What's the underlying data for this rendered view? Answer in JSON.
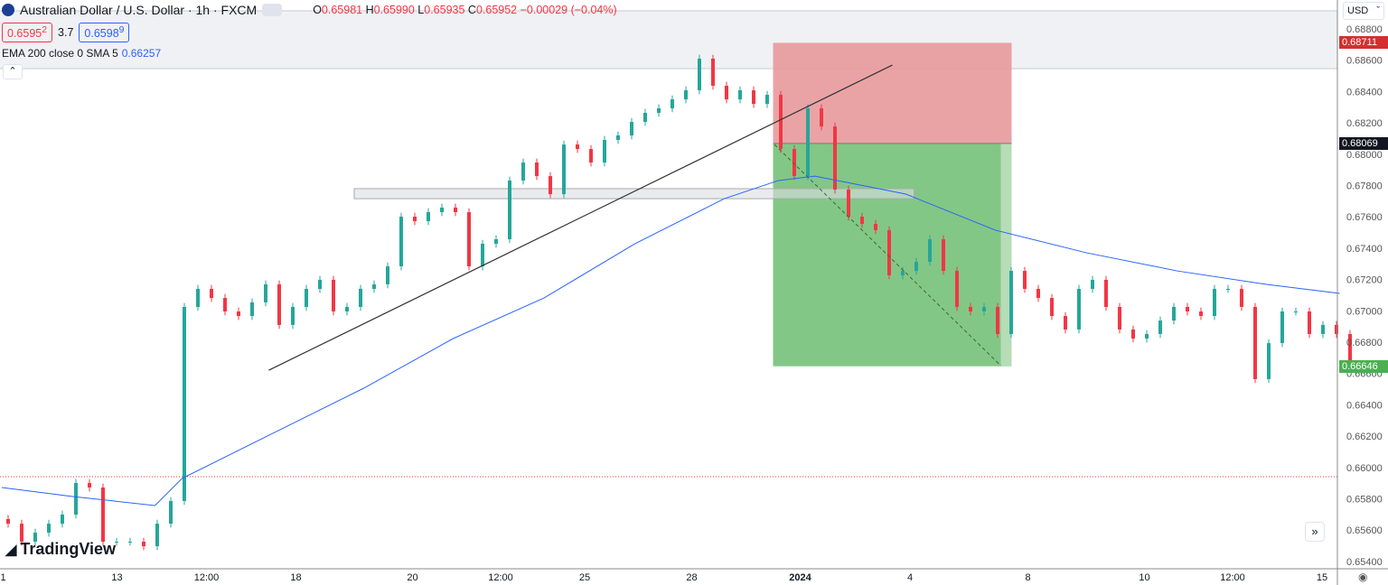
{
  "header": {
    "title": "Australian Dollar / U.S. Dollar · 1h · FXCM",
    "open_label": "O",
    "open": "0.65981",
    "high_label": "H",
    "high": "0.65990",
    "low_label": "L",
    "low": "0.65935",
    "close_label": "C",
    "close": "0.65952",
    "change": "−0.00029 (−0.04%)",
    "sell_price": "0.6595",
    "sell_sup": "2",
    "spread": "3.7",
    "buy_price": "0.6598",
    "buy_sup": "9",
    "indicator": "EMA 200 close 0 SMA 5",
    "indicator_value": "0.66257",
    "collapse_icon": "chevron-up-icon"
  },
  "currency_menu": "USD",
  "logo_text": "TradingView",
  "colors": {
    "up": "#26a69a",
    "down": "#f23645",
    "ema": "#2962ff",
    "stop_zone": "#e8999b",
    "target_zone": "#7cc47f",
    "stop_tag": "#d32f2f",
    "entry_tag": "#131722",
    "target_tag": "#4caf50"
  },
  "chart_data": {
    "type": "candlestick",
    "symbol": "AUDUSD",
    "interval": "1h",
    "ylim": [
      0.654,
      0.689
    ],
    "yticks": [
      "0.68800",
      "0.68600",
      "0.68400",
      "0.68200",
      "0.68000",
      "0.67800",
      "0.67600",
      "0.67400",
      "0.67200",
      "0.67000",
      "0.66800",
      "0.66600",
      "0.66400",
      "0.66200",
      "0.66000",
      "0.65800",
      "0.65600",
      "0.65400"
    ],
    "xticks": [
      {
        "i": 0.1,
        "label": "1"
      },
      {
        "i": 8.5,
        "label": "13"
      },
      {
        "i": 15.1,
        "label": "12:00"
      },
      {
        "i": 21.7,
        "label": "18"
      },
      {
        "i": 30.3,
        "label": "20"
      },
      {
        "i": 36.8,
        "label": "12:00"
      },
      {
        "i": 43,
        "label": "25"
      },
      {
        "i": 50.9,
        "label": "28"
      },
      {
        "i": 58.9,
        "label": "2024"
      },
      {
        "i": 67,
        "label": "4"
      },
      {
        "i": 75.7,
        "label": "8"
      },
      {
        "i": 84.3,
        "label": "10"
      },
      {
        "i": 90.8,
        "label": "12:00"
      },
      {
        "i": 97.4,
        "label": "15"
      }
    ],
    "closes": [
      0.65641,
      0.65526,
      0.65584,
      0.65641,
      0.65699,
      0.65901,
      0.65872,
      0.65526,
      0.65526,
      0.65526,
      0.65497,
      0.65641,
      0.65786,
      0.67025,
      0.6714,
      0.67082,
      0.66996,
      0.66967,
      0.67054,
      0.67169,
      0.6691,
      0.67025,
      0.6714,
      0.67198,
      0.66996,
      0.67025,
      0.6714,
      0.67169,
      0.67284,
      0.67601,
      0.67572,
      0.6763,
      0.67659,
      0.6763,
      0.67284,
      0.67428,
      0.67457,
      0.67832,
      0.67947,
      0.6786,
      0.67745,
      0.68062,
      0.68033,
      0.67947,
      0.68091,
      0.6812,
      0.68206,
      0.68264,
      0.68293,
      0.6835,
      0.68408,
      0.6861,
      0.68437,
      0.6835,
      0.68408,
      0.68321,
      0.68379,
      0.68033,
      0.6786,
      0.68293,
      0.68177,
      0.67774,
      0.67601,
      0.67555,
      0.67515,
      0.67227,
      0.67255,
      0.67313,
      0.67457,
      0.67255,
      0.67025,
      0.66996,
      0.67025,
      0.66852,
      0.67255,
      0.6714,
      0.67082,
      0.66967,
      0.66881,
      0.6714,
      0.67198,
      0.67025,
      0.66881,
      0.66823,
      0.66852,
      0.66938,
      0.67025,
      0.66996,
      0.66967,
      0.6714,
      0.6714,
      0.67025,
      0.66564,
      0.66794,
      0.66996,
      0.66996,
      0.66852,
      0.6691,
      0.66852,
      0.66679
    ],
    "ema200": [
      [
        0,
        0.65872
      ],
      [
        5.3,
        0.65814
      ],
      [
        11.3,
        0.65757
      ],
      [
        13.3,
        0.6593
      ],
      [
        20,
        0.66218
      ],
      [
        26.7,
        0.66506
      ],
      [
        33.3,
        0.66823
      ],
      [
        40,
        0.67082
      ],
      [
        46.7,
        0.67428
      ],
      [
        53.3,
        0.67716
      ],
      [
        57.3,
        0.67832
      ],
      [
        60,
        0.6786
      ],
      [
        66.7,
        0.67745
      ],
      [
        73.3,
        0.67515
      ],
      [
        80,
        0.67371
      ],
      [
        86.7,
        0.67255
      ],
      [
        93.3,
        0.67169
      ],
      [
        98.7,
        0.67111
      ]
    ],
    "trendline": [
      [
        19.7,
        0.66621
      ],
      [
        65.7,
        0.68569
      ]
    ],
    "position": {
      "type": "short",
      "start": 56.9,
      "end": 74.5,
      "stop": 0.68711,
      "entry": 0.68069,
      "target": 0.66646,
      "stop_label": "0.68711",
      "entry_label": "0.68069",
      "target_label": "0.66646"
    },
    "path_line": [
      [
        57,
        0.68062
      ],
      [
        73.7,
        0.6665
      ]
    ],
    "zone": {
      "start": 26,
      "end": 67.3,
      "top": 0.6778,
      "bottom": 0.67716
    },
    "hline": 0.65941
  }
}
